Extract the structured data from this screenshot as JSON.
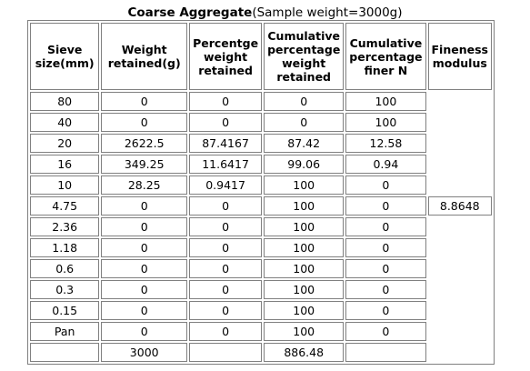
{
  "caption": {
    "bold": "Coarse Aggregate",
    "rest": "(Sample weight=3000g)"
  },
  "headers": {
    "sieve": [
      "Sieve",
      "size(mm)"
    ],
    "retained": [
      "Weight",
      "retained(g)"
    ],
    "percent": [
      "Percentge",
      "weight",
      "retained"
    ],
    "cumulative": [
      "Cumulative",
      "percentage",
      "weight",
      "retained"
    ],
    "finer": [
      "Cumulative",
      "percentage",
      "finer N"
    ],
    "fineness": [
      "Fineness",
      "modulus"
    ]
  },
  "rows": [
    {
      "sieve": "80",
      "retained": "0",
      "percent": "0",
      "cumulative": "0",
      "finer": "100"
    },
    {
      "sieve": "40",
      "retained": "0",
      "percent": "0",
      "cumulative": "0",
      "finer": "100"
    },
    {
      "sieve": "20",
      "retained": "2622.5",
      "percent": "87.4167",
      "cumulative": "87.42",
      "finer": "12.58"
    },
    {
      "sieve": "16",
      "retained": "349.25",
      "percent": "11.6417",
      "cumulative": "99.06",
      "finer": "0.94"
    },
    {
      "sieve": "10",
      "retained": "28.25",
      "percent": "0.9417",
      "cumulative": "100",
      "finer": "0"
    },
    {
      "sieve": "4.75",
      "retained": "0",
      "percent": "0",
      "cumulative": "100",
      "finer": "0"
    },
    {
      "sieve": "2.36",
      "retained": "0",
      "percent": "0",
      "cumulative": "100",
      "finer": "0"
    },
    {
      "sieve": "1.18",
      "retained": "0",
      "percent": "0",
      "cumulative": "100",
      "finer": "0"
    },
    {
      "sieve": "0.6",
      "retained": "0",
      "percent": "0",
      "cumulative": "100",
      "finer": "0"
    },
    {
      "sieve": "0.3",
      "retained": "0",
      "percent": "0",
      "cumulative": "100",
      "finer": "0"
    },
    {
      "sieve": "0.15",
      "retained": "0",
      "percent": "0",
      "cumulative": "100",
      "finer": "0"
    },
    {
      "sieve": "Pan",
      "retained": "0",
      "percent": "0",
      "cumulative": "100",
      "finer": "0"
    }
  ],
  "totals": {
    "retained": "3000",
    "cumulative": "886.48"
  },
  "fineness_modulus": "8.8648"
}
